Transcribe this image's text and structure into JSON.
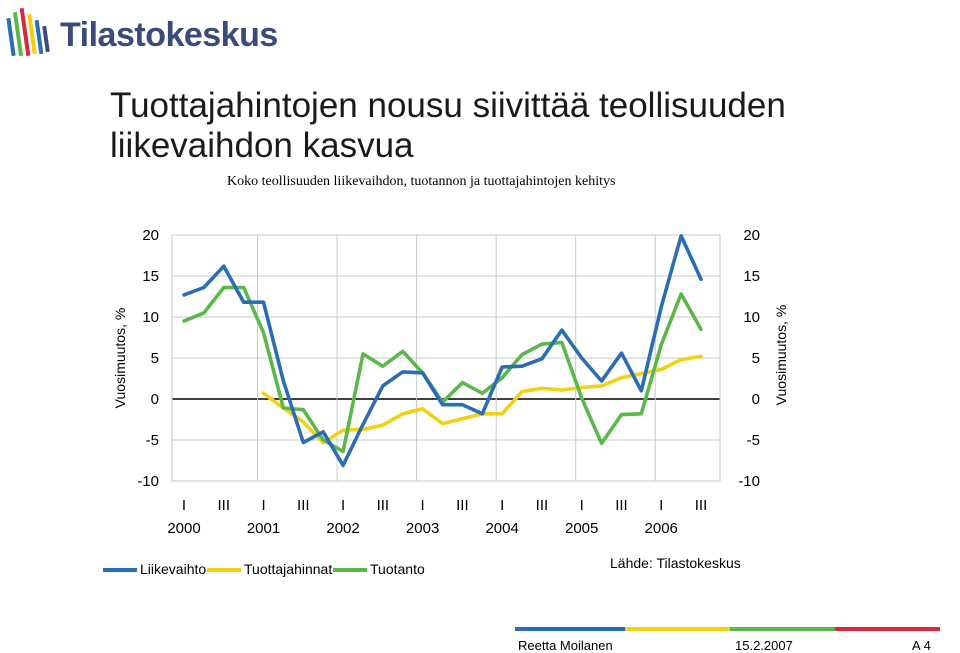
{
  "brand": {
    "name": "Tilastokeskus",
    "colors": [
      "#2a6db5",
      "#f3d012",
      "#5ab84a",
      "#d9283c",
      "#3a4a7a"
    ]
  },
  "header": {
    "title": "Tuottajahintojen nousu siivittää teollisuuden liikevaihdon kasvua",
    "subtitle": "Koko teollisuuden liikevaihdon, tuotannon ja tuottajahintojen kehitys"
  },
  "chart_data": {
    "type": "line",
    "ylabel_left": "Vuosimuutos, %",
    "ylabel_right": "Vuosimuutos, %",
    "ylim": [
      -10,
      20
    ],
    "yticks": [
      -10,
      -5,
      0,
      5,
      10,
      15,
      20
    ],
    "quarter_ticks": [
      "I",
      "III",
      "I",
      "III",
      "I",
      "III",
      "I",
      "III",
      "I",
      "III",
      "I",
      "III",
      "I",
      "III"
    ],
    "year_labels": [
      "2000",
      "2001",
      "2002",
      "2003",
      "2004",
      "2005",
      "2006"
    ],
    "grid": true,
    "legend_position": "bottom-left",
    "series": [
      {
        "name": "Liikevaihto",
        "color": "#2a6db5",
        "values": [
          12.7,
          13.6,
          16.2,
          11.8,
          11.8,
          2.2,
          -5.3,
          -4.0,
          -8.1,
          -3.1,
          1.6,
          3.3,
          3.2,
          -0.7,
          -0.7,
          -1.8,
          3.9,
          4.0,
          4.9,
          8.4,
          5.0,
          2.2,
          5.6,
          1.0,
          11.2,
          19.9,
          14.6
        ]
      },
      {
        "name": "Tuottajahinnat",
        "color": "#f3d012",
        "values": [
          null,
          null,
          null,
          null,
          0.7,
          -1.1,
          -2.8,
          -5.3,
          -3.8,
          -3.7,
          -3.2,
          -1.8,
          -1.2,
          -3.0,
          -2.4,
          -1.8,
          -1.8,
          0.9,
          1.3,
          1.1,
          1.4,
          1.6,
          2.6,
          3.1,
          3.6,
          4.8,
          5.2
        ]
      },
      {
        "name": "Tuotanto",
        "color": "#5ab84a",
        "values": [
          9.5,
          10.5,
          13.6,
          13.6,
          8.1,
          -1.1,
          -1.3,
          -5.0,
          -6.4,
          5.5,
          4.0,
          5.8,
          3.2,
          -0.4,
          2.0,
          0.7,
          2.6,
          5.4,
          6.7,
          6.9,
          0.1,
          -5.4,
          -1.9,
          -1.8,
          6.6,
          12.8,
          8.5
        ]
      }
    ]
  },
  "source": "Lähde: Tilastokeskus",
  "footer": {
    "author": "Reetta Moilanen",
    "date": "15.2.2007",
    "page": "A 4"
  }
}
